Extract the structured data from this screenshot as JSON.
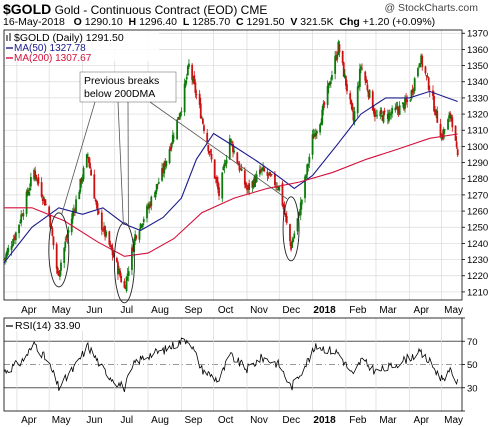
{
  "header": {
    "symbol": "$GOLD",
    "name": "Gold - Continuous Contract (EOD)",
    "exchange": "CME",
    "date": "16-May-2018",
    "open_label": "O",
    "open": "1290.10",
    "high_label": "H",
    "high": "1296.40",
    "low_label": "L",
    "low": "1285.70",
    "close_label": "C",
    "close": "1291.50",
    "volume_label": "V",
    "volume": "321.5K",
    "change_label": "Chg",
    "change": "+1.20 (+0.09%)",
    "copyright": "@ StockCharts.com"
  },
  "legend": {
    "price": "$GOLD (Daily) 1291.50",
    "ma50": "MA(50) 1327.78",
    "ma200": "MA(200) 1307.67",
    "rsi": "RSI(14) 33.90"
  },
  "annotation": {
    "line1": "Previous breaks",
    "line2": "below 200DMA"
  },
  "colors": {
    "up": "#0a7a0a",
    "down": "#cc1010",
    "ma50": "#1a1a8c",
    "ma200": "#d4103a",
    "rsi": "#000000",
    "grid": "#d9d9d9"
  },
  "chart_data": [
    {
      "type": "line",
      "chart_style": "candlestick (daily)",
      "price_min_shown": 1205,
      "price_max_shown": 1372,
      "ylim": [
        1205,
        1372
      ],
      "y_ticks": [
        1210,
        1220,
        1230,
        1240,
        1250,
        1260,
        1270,
        1280,
        1290,
        1300,
        1310,
        1320,
        1330,
        1340,
        1350,
        1360,
        1370
      ],
      "x_tick_labels": [
        "Apr",
        "May",
        "Jun",
        "Jul",
        "Aug",
        "Sep",
        "Oct",
        "Nov",
        "Dec",
        "2018",
        "Feb",
        "Mar",
        "Apr",
        "May"
      ],
      "grid": true,
      "legend_position": "top-left",
      "series": [
        {
          "name": "$GOLD (Daily)",
          "x": [
            "2017-03-20",
            "2017-04-01",
            "2017-04-17",
            "2017-05-01",
            "2017-05-09",
            "2017-05-16",
            "2017-06-06",
            "2017-06-15",
            "2017-07-01",
            "2017-07-10",
            "2017-07-20",
            "2017-08-01",
            "2017-08-15",
            "2017-09-01",
            "2017-09-08",
            "2017-09-20",
            "2017-10-06",
            "2017-10-16",
            "2017-11-01",
            "2017-11-15",
            "2017-12-01",
            "2017-12-12",
            "2017-12-20",
            "2018-01-01",
            "2018-01-10",
            "2018-01-25",
            "2018-02-08",
            "2018-02-15",
            "2018-03-01",
            "2018-03-15",
            "2018-04-01",
            "2018-04-11",
            "2018-04-20",
            "2018-05-01",
            "2018-05-10",
            "2018-05-16"
          ],
          "values": [
            1230,
            1248,
            1285,
            1258,
            1220,
            1240,
            1295,
            1258,
            1230,
            1212,
            1245,
            1262,
            1285,
            1325,
            1350,
            1318,
            1270,
            1305,
            1273,
            1285,
            1275,
            1238,
            1260,
            1305,
            1320,
            1362,
            1316,
            1350,
            1318,
            1320,
            1328,
            1355,
            1336,
            1306,
            1320,
            1291.5
          ]
        },
        {
          "name": "MA(50)",
          "x": [
            "2017-03-20",
            "2017-04-15",
            "2017-05-10",
            "2017-06-01",
            "2017-06-20",
            "2017-07-10",
            "2017-07-25",
            "2017-08-15",
            "2017-09-01",
            "2017-09-15",
            "2017-10-01",
            "2017-10-20",
            "2017-11-10",
            "2017-11-25",
            "2017-12-15",
            "2018-01-01",
            "2018-01-25",
            "2018-02-15",
            "2018-03-10",
            "2018-04-01",
            "2018-04-20",
            "2018-05-16"
          ],
          "values": [
            1228,
            1250,
            1262,
            1258,
            1262,
            1252,
            1248,
            1256,
            1268,
            1292,
            1308,
            1300,
            1291,
            1284,
            1274,
            1282,
            1302,
            1320,
            1330,
            1330,
            1334,
            1327.78
          ]
        },
        {
          "name": "MA(200)",
          "x": [
            "2017-03-20",
            "2017-04-15",
            "2017-05-15",
            "2017-06-15",
            "2017-07-10",
            "2017-08-01",
            "2017-08-25",
            "2017-09-20",
            "2017-10-20",
            "2017-11-20",
            "2017-12-20",
            "2018-01-20",
            "2018-02-20",
            "2018-03-20",
            "2018-04-20",
            "2018-05-16"
          ],
          "values": [
            1262,
            1262,
            1254,
            1241,
            1232,
            1234,
            1243,
            1259,
            1268,
            1274,
            1278,
            1284,
            1292,
            1298,
            1305,
            1307.67
          ]
        }
      ]
    },
    {
      "type": "line",
      "ylim": [
        10,
        90
      ],
      "y_ticks": [
        10,
        30,
        50,
        70,
        90
      ],
      "reference_lines": [
        30,
        50,
        70
      ],
      "x_tick_labels": [
        "Apr",
        "May",
        "Jun",
        "Jul",
        "Aug",
        "Sep",
        "Oct",
        "Nov",
        "Dec",
        "2018",
        "Feb",
        "Mar",
        "Apr",
        "May"
      ],
      "series": [
        {
          "name": "RSI(14)",
          "x": [
            "2017-03-20",
            "2017-04-05",
            "2017-04-18",
            "2017-05-01",
            "2017-05-10",
            "2017-05-25",
            "2017-06-06",
            "2017-06-20",
            "2017-07-01",
            "2017-07-10",
            "2017-07-20",
            "2017-08-01",
            "2017-08-15",
            "2017-09-01",
            "2017-09-08",
            "2017-09-20",
            "2017-10-06",
            "2017-10-16",
            "2017-11-01",
            "2017-11-15",
            "2017-12-01",
            "2017-12-12",
            "2017-12-20",
            "2018-01-05",
            "2018-01-25",
            "2018-02-08",
            "2018-02-15",
            "2018-03-01",
            "2018-03-15",
            "2018-04-01",
            "2018-04-11",
            "2018-04-20",
            "2018-05-01",
            "2018-05-10",
            "2018-05-16"
          ],
          "values": [
            44,
            52,
            68,
            50,
            30,
            48,
            66,
            46,
            36,
            30,
            52,
            58,
            62,
            70,
            72,
            46,
            36,
            58,
            46,
            56,
            50,
            30,
            42,
            66,
            60,
            40,
            54,
            44,
            48,
            56,
            60,
            52,
            38,
            44,
            33.9
          ]
        }
      ]
    }
  ]
}
